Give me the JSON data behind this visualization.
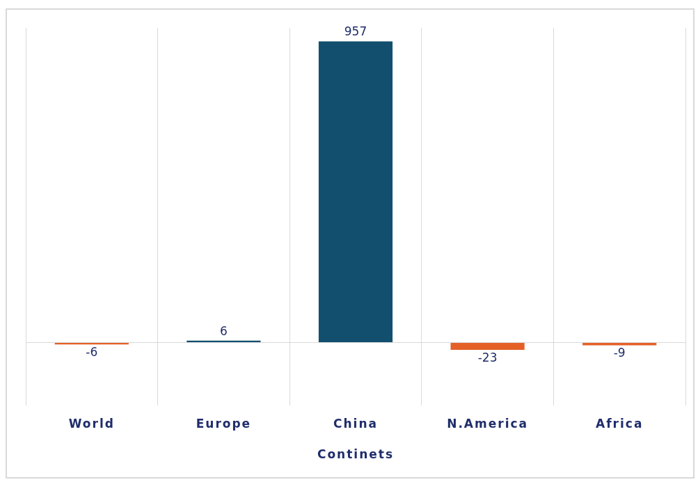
{
  "chart_data": {
    "type": "bar",
    "xlabel": "Continets",
    "categories": [
      "World",
      "Europe",
      "China",
      "N.America",
      "Africa"
    ],
    "values": [
      -6,
      6,
      957,
      -23,
      -9
    ],
    "colors": [
      "#e46027",
      "#124f6e",
      "#124f6e",
      "#e46027",
      "#e46027"
    ],
    "data_labels": true,
    "grid": "x"
  }
}
